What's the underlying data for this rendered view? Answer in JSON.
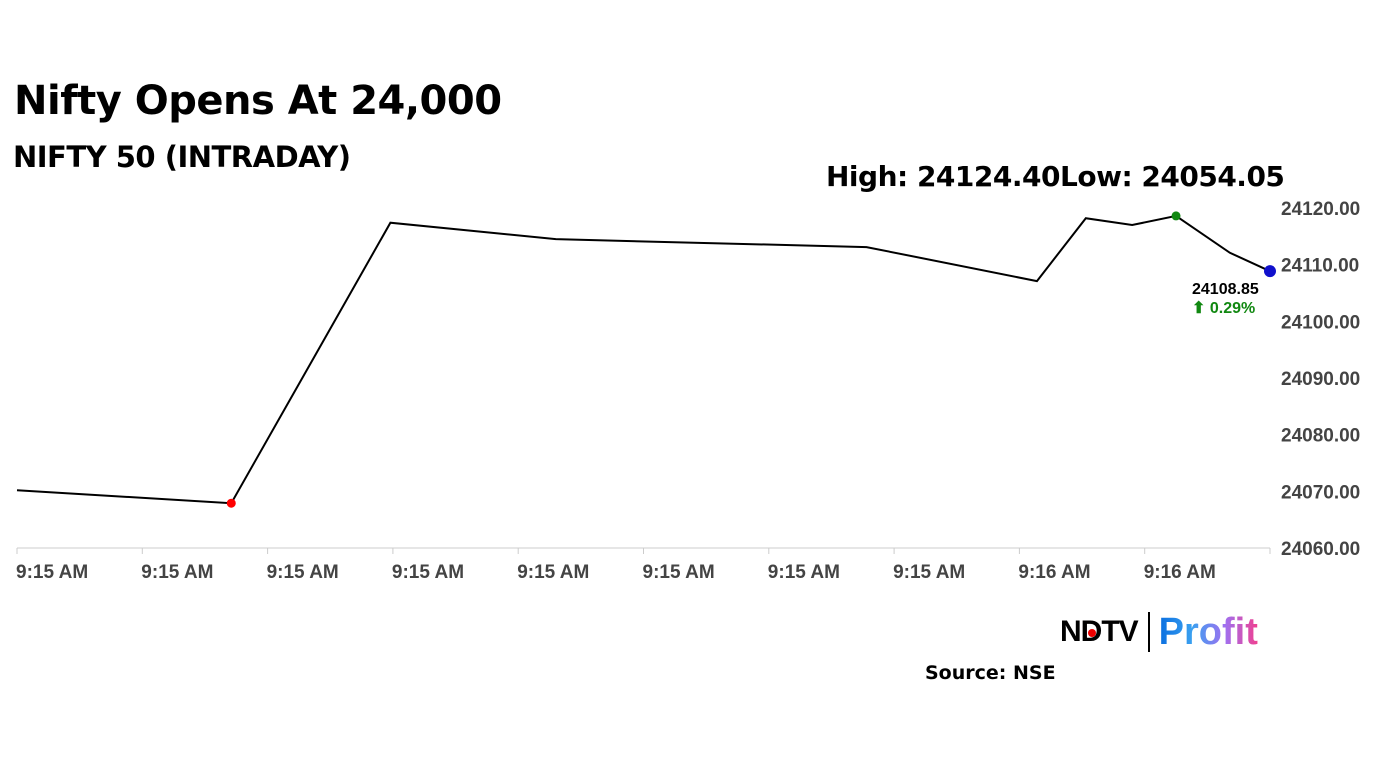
{
  "chart_data": {
    "type": "line",
    "title": "Nifty Opens At 24,000",
    "subtitle": "NIFTY 50 (INTRADAY)",
    "high_label": "High: 24124.40",
    "low_label": "Low: 24054.05",
    "last_value_label": "24108.85",
    "change_label": "⬆ 0.29%",
    "x_tick_labels": [
      "9:15 AM",
      "9:15 AM",
      "9:15 AM",
      "9:15 AM",
      "9:15 AM",
      "9:15 AM",
      "9:15 AM",
      "9:15 AM",
      "9:16 AM",
      "9:16 AM"
    ],
    "y_tick_labels": [
      "24060.00",
      "24070.00",
      "24080.00",
      "24090.00",
      "24100.00",
      "24110.00",
      "24120.00"
    ],
    "y_ticks": [
      24060,
      24070,
      24080,
      24090,
      24100,
      24110,
      24120
    ],
    "ylim": [
      24060,
      24120
    ],
    "xlim": [
      0,
      10
    ],
    "grid": false,
    "points": [
      {
        "x": 0,
        "y": 24070.2
      },
      {
        "x": 1.71,
        "y": 24067.9,
        "marker": "red"
      },
      {
        "x": 2.98,
        "y": 24117.4
      },
      {
        "x": 4.3,
        "y": 24114.5
      },
      {
        "x": 6.78,
        "y": 24113.1
      },
      {
        "x": 8.14,
        "y": 24107.1
      },
      {
        "x": 8.53,
        "y": 24118.2
      },
      {
        "x": 8.9,
        "y": 24117.0
      },
      {
        "x": 9.25,
        "y": 24118.6,
        "marker": "green"
      },
      {
        "x": 9.68,
        "y": 24112.1
      },
      {
        "x": 10,
        "y": 24108.85,
        "marker": "blue"
      }
    ],
    "colors": {
      "line": "#000000",
      "red": "#ff0000",
      "green": "#118811",
      "blue": "#1010cc",
      "change": "#118811",
      "axis_text": "#444444"
    }
  },
  "branding": {
    "logo_text": "NDTV | Profit",
    "ndtv": "NDTV",
    "profit": "Profit"
  },
  "source": "Source: NSE"
}
